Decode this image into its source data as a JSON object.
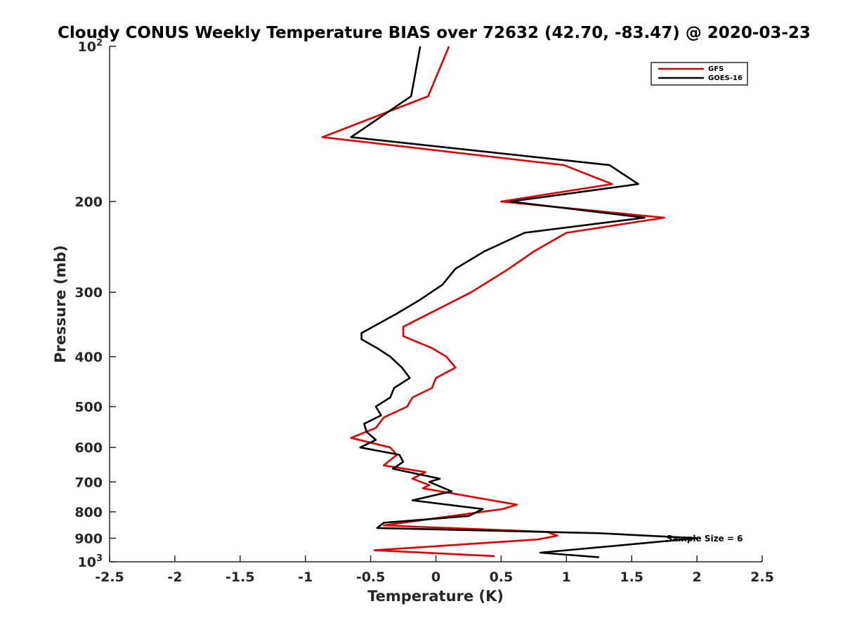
{
  "chart_data": {
    "type": "line",
    "title": "Cloudy CONUS Weekly Temperature BIAS over 72632 (42.70, -83.47) @ 2020-03-23",
    "xlabel": "Temperature (K)",
    "ylabel": "Pressure (mb)",
    "xlim": [
      -2.5,
      2.5
    ],
    "ylim": [
      100,
      1000
    ],
    "yscale": "log",
    "y_reversed": true,
    "grid": false,
    "legend_position": "top-right",
    "colors": {
      "GFS": "#e00000",
      "GOES-16": "#000000"
    },
    "x_ticks": [
      {
        "value": -2.5,
        "label": "-2.5"
      },
      {
        "value": -2,
        "label": "-2"
      },
      {
        "value": -1.5,
        "label": "-1.5"
      },
      {
        "value": -1,
        "label": "-1"
      },
      {
        "value": -0.5,
        "label": "-0.5"
      },
      {
        "value": 0,
        "label": "0"
      },
      {
        "value": 0.5,
        "label": "0.5"
      },
      {
        "value": 1,
        "label": "1"
      },
      {
        "value": 1.5,
        "label": "1.5"
      },
      {
        "value": 2,
        "label": "2"
      },
      {
        "value": 2.5,
        "label": "2.5"
      }
    ],
    "y_ticks": [
      {
        "value": 100,
        "label": "10",
        "sup": "2"
      },
      {
        "value": 200,
        "label": "200"
      },
      {
        "value": 300,
        "label": "300"
      },
      {
        "value": 400,
        "label": "400"
      },
      {
        "value": 500,
        "label": "500"
      },
      {
        "value": 600,
        "label": "600"
      },
      {
        "value": 700,
        "label": "700"
      },
      {
        "value": 800,
        "label": "800"
      },
      {
        "value": 900,
        "label": "900"
      },
      {
        "value": 1000,
        "label": "10",
        "sup": "3"
      }
    ],
    "series": [
      {
        "name": "GFS",
        "points": [
          [
            0.1,
            100
          ],
          [
            -0.06,
            125
          ],
          [
            -0.87,
            150
          ],
          [
            0.98,
            170
          ],
          [
            1.35,
            185
          ],
          [
            0.5,
            200
          ],
          [
            1.75,
            215
          ],
          [
            1.0,
            230
          ],
          [
            0.75,
            250
          ],
          [
            0.56,
            270
          ],
          [
            0.27,
            300
          ],
          [
            0.0,
            325
          ],
          [
            -0.25,
            350
          ],
          [
            -0.25,
            365
          ],
          [
            -0.03,
            385
          ],
          [
            0.08,
            400
          ],
          [
            0.15,
            420
          ],
          [
            0.0,
            440
          ],
          [
            -0.03,
            460
          ],
          [
            -0.18,
            480
          ],
          [
            -0.22,
            500
          ],
          [
            -0.4,
            525
          ],
          [
            -0.46,
            550
          ],
          [
            -0.65,
            575
          ],
          [
            -0.35,
            600
          ],
          [
            -0.3,
            620
          ],
          [
            -0.4,
            650
          ],
          [
            -0.08,
            670
          ],
          [
            -0.18,
            690
          ],
          [
            -0.05,
            710
          ],
          [
            -0.1,
            720
          ],
          [
            0.62,
            775
          ],
          [
            0.51,
            790
          ],
          [
            -0.4,
            850
          ],
          [
            0.85,
            875
          ],
          [
            0.93,
            890
          ],
          [
            0.78,
            905
          ],
          [
            -0.47,
            950
          ],
          [
            0.45,
            975
          ]
        ]
      },
      {
        "name": "GOES-16",
        "points": [
          [
            -0.12,
            100
          ],
          [
            -0.19,
            125
          ],
          [
            -0.65,
            150
          ],
          [
            1.33,
            170
          ],
          [
            1.55,
            185
          ],
          [
            0.57,
            200
          ],
          [
            1.6,
            215
          ],
          [
            0.68,
            230
          ],
          [
            0.37,
            250
          ],
          [
            0.15,
            270
          ],
          [
            0.05,
            290
          ],
          [
            -0.12,
            310
          ],
          [
            -0.3,
            330
          ],
          [
            -0.57,
            360
          ],
          [
            -0.57,
            370
          ],
          [
            -0.45,
            385
          ],
          [
            -0.35,
            400
          ],
          [
            -0.26,
            420
          ],
          [
            -0.2,
            440
          ],
          [
            -0.32,
            460
          ],
          [
            -0.35,
            480
          ],
          [
            -0.46,
            500
          ],
          [
            -0.42,
            520
          ],
          [
            -0.55,
            540
          ],
          [
            -0.53,
            560
          ],
          [
            -0.46,
            580
          ],
          [
            -0.58,
            600
          ],
          [
            -0.28,
            620
          ],
          [
            -0.25,
            640
          ],
          [
            -0.33,
            660
          ],
          [
            0.03,
            690
          ],
          [
            -0.05,
            700
          ],
          [
            0.12,
            730
          ],
          [
            -0.18,
            760
          ],
          [
            0.36,
            790
          ],
          [
            0.25,
            815
          ],
          [
            -0.4,
            840
          ],
          [
            -0.45,
            860
          ],
          [
            1.25,
            880
          ],
          [
            2.0,
            900
          ],
          [
            1.5,
            925
          ],
          [
            0.8,
            960
          ],
          [
            1.25,
            980
          ]
        ]
      }
    ],
    "annotations": [
      {
        "text": "Sample Size = 6",
        "x": 2.2,
        "y": 900
      }
    ]
  }
}
